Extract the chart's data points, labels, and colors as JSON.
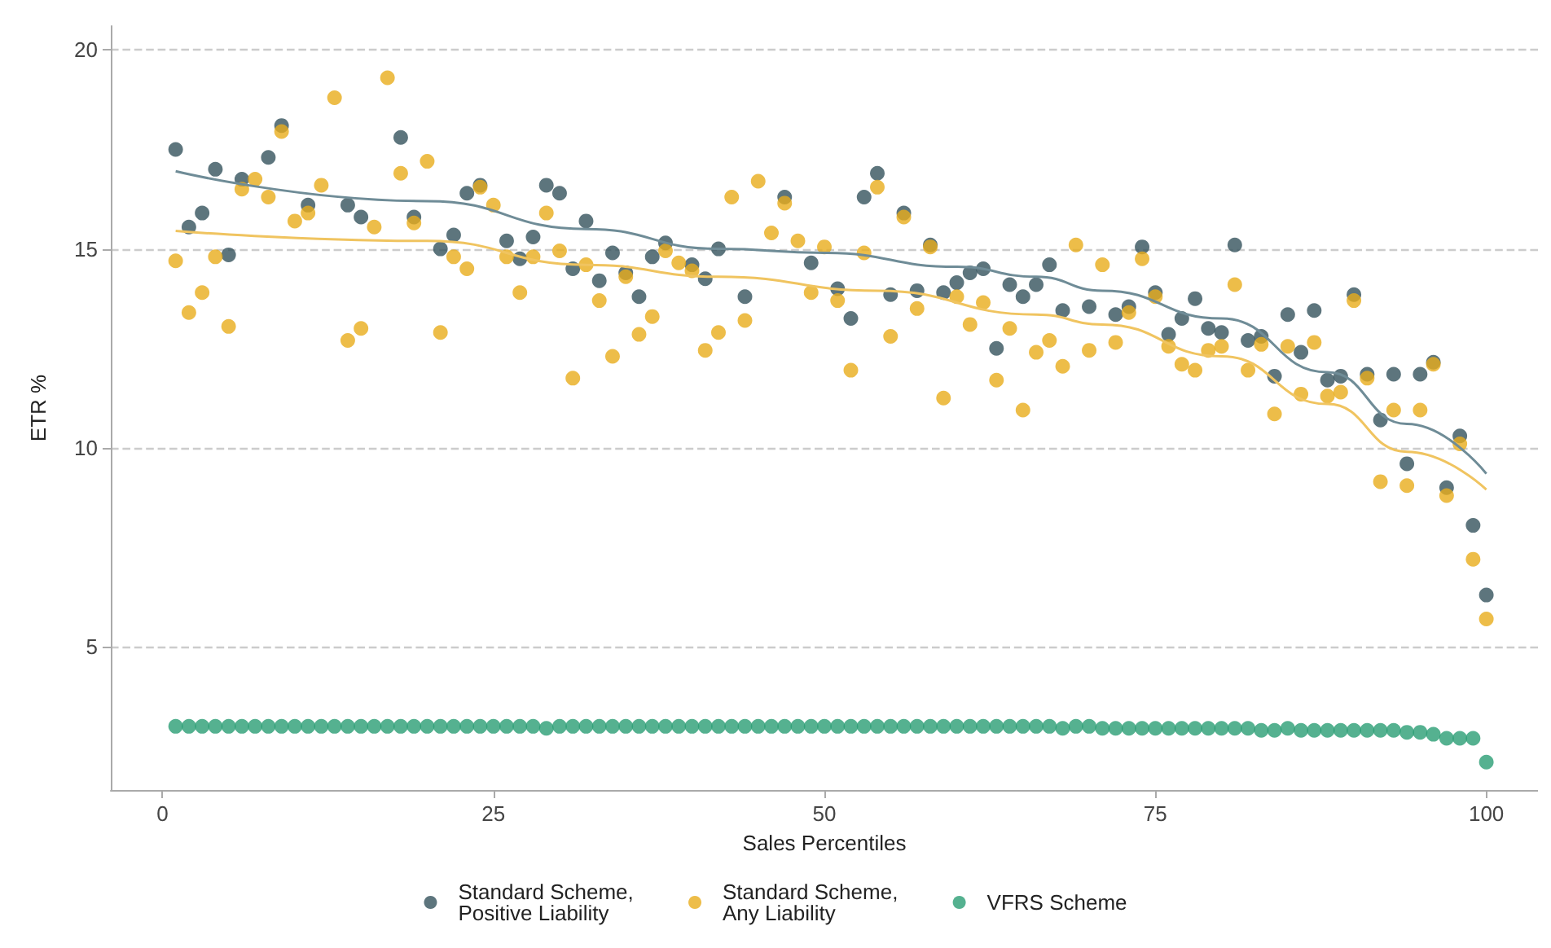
{
  "chart_data": {
    "type": "scatter",
    "xlabel": "Sales Percentiles",
    "ylabel": "ETR %",
    "x": [
      1,
      2,
      3,
      4,
      5,
      6,
      7,
      8,
      9,
      10,
      11,
      12,
      13,
      14,
      15,
      16,
      17,
      18,
      19,
      20,
      21,
      22,
      23,
      24,
      25,
      26,
      27,
      28,
      29,
      30,
      31,
      32,
      33,
      34,
      35,
      36,
      37,
      38,
      39,
      40,
      41,
      42,
      43,
      44,
      45,
      46,
      47,
      48,
      49,
      50,
      51,
      52,
      53,
      54,
      55,
      56,
      57,
      58,
      59,
      60,
      61,
      62,
      63,
      64,
      65,
      66,
      67,
      68,
      69,
      70,
      71,
      72,
      73,
      74,
      75,
      76,
      77,
      78,
      79,
      80,
      81,
      82,
      83,
      84,
      85,
      86,
      87,
      88,
      89,
      90,
      91,
      92,
      93,
      94,
      95,
      96,
      97,
      98,
      99,
      100
    ],
    "series": [
      {
        "name": "Standard Scheme, Positive Liability",
        "color": "#34525c",
        "values": [
          17.5,
          15.55,
          15.9,
          17.0,
          14.85,
          16.75,
          null,
          17.3,
          18.1,
          null,
          16.1,
          null,
          null,
          16.1,
          15.8,
          null,
          null,
          17.8,
          15.8,
          null,
          15.0,
          15.35,
          16.4,
          16.6,
          null,
          15.2,
          14.75,
          15.3,
          16.6,
          16.4,
          14.5,
          15.7,
          14.2,
          14.9,
          14.4,
          13.8,
          14.8,
          15.15,
          null,
          14.6,
          14.25,
          15.0,
          null,
          13.8,
          null,
          null,
          16.3,
          null,
          14.65,
          null,
          14.0,
          13.25,
          16.3,
          16.9,
          13.85,
          15.9,
          13.95,
          15.1,
          13.9,
          14.15,
          14.4,
          14.5,
          12.5,
          14.1,
          13.8,
          14.1,
          14.6,
          13.45,
          null,
          13.55,
          null,
          13.35,
          13.55,
          15.05,
          13.9,
          12.85,
          13.25,
          13.75,
          13.0,
          12.9,
          15.1,
          12.7,
          12.8,
          11.8,
          13.35,
          12.4,
          13.45,
          11.7,
          11.8,
          13.85,
          11.85,
          10.7,
          11.85,
          9.6,
          11.85,
          12.15,
          9.0,
          10.3,
          8.05,
          6.3
        ]
      },
      {
        "name": "Standard Scheme, Any Liability",
        "color": "#e8ac1c",
        "values": [
          14.7,
          13.4,
          13.9,
          14.8,
          13.05,
          16.5,
          16.75,
          16.3,
          17.95,
          15.7,
          15.9,
          16.6,
          18.8,
          12.7,
          13.0,
          15.55,
          19.3,
          16.9,
          15.65,
          17.2,
          12.9,
          14.8,
          14.5,
          16.55,
          16.1,
          14.8,
          13.9,
          14.8,
          15.9,
          14.95,
          11.75,
          14.6,
          13.7,
          12.3,
          14.3,
          12.85,
          13.3,
          14.95,
          14.65,
          14.45,
          12.45,
          12.9,
          16.3,
          13.2,
          16.7,
          15.4,
          16.15,
          15.2,
          13.9,
          15.05,
          13.7,
          11.95,
          14.9,
          16.55,
          12.8,
          15.8,
          13.5,
          15.05,
          11.25,
          13.8,
          13.1,
          13.65,
          11.7,
          13.0,
          10.95,
          12.4,
          12.7,
          12.05,
          15.1,
          12.45,
          14.6,
          12.65,
          13.4,
          14.75,
          13.8,
          12.55,
          12.1,
          11.95,
          12.45,
          12.55,
          14.1,
          11.95,
          12.6,
          10.85,
          12.55,
          11.35,
          12.65,
          11.3,
          11.4,
          13.7,
          11.75,
          9.15,
          10.95,
          9.05,
          10.95,
          12.1,
          8.8,
          10.1,
          7.2,
          5.7
        ]
      },
      {
        "name": "VFRS Scheme",
        "color": "#2a9d74",
        "values": [
          3.0,
          3.0,
          3.0,
          3.0,
          3.0,
          3.0,
          3.0,
          3.0,
          3.0,
          3.0,
          3.0,
          3.0,
          3.0,
          3.0,
          3.0,
          3.0,
          3.0,
          3.0,
          3.0,
          3.0,
          3.0,
          3.0,
          3.0,
          3.0,
          3.0,
          3.0,
          3.0,
          3.0,
          2.95,
          3.0,
          3.0,
          3.0,
          3.0,
          3.0,
          3.0,
          3.0,
          3.0,
          3.0,
          3.0,
          3.0,
          3.0,
          3.0,
          3.0,
          3.0,
          3.0,
          3.0,
          3.0,
          3.0,
          3.0,
          3.0,
          3.0,
          3.0,
          3.0,
          3.0,
          3.0,
          3.0,
          3.0,
          3.0,
          3.0,
          3.0,
          3.0,
          3.0,
          3.0,
          3.0,
          3.0,
          3.0,
          3.0,
          2.95,
          3.0,
          3.0,
          2.95,
          2.95,
          2.95,
          2.95,
          2.95,
          2.95,
          2.95,
          2.95,
          2.95,
          2.95,
          2.95,
          2.95,
          2.9,
          2.9,
          2.95,
          2.9,
          2.9,
          2.9,
          2.9,
          2.9,
          2.9,
          2.9,
          2.9,
          2.85,
          2.85,
          2.8,
          2.7,
          2.7,
          2.7,
          2.1
        ]
      },
      {
        "type": "line",
        "marker": "none",
        "color": "#6f8c97",
        "x": [
          1,
          20,
          32,
          42,
          50,
          60,
          66,
          71,
          80,
          88,
          94,
          100
        ],
        "values": [
          16.95,
          16.2,
          15.5,
          15.0,
          14.9,
          14.55,
          14.3,
          13.95,
          13.25,
          11.9,
          10.6,
          9.35
        ]
      },
      {
        "type": "line",
        "marker": "none",
        "color": "#f0c460",
        "x": [
          1,
          20,
          32,
          42,
          54,
          66,
          71,
          80,
          88,
          94,
          100
        ],
        "values": [
          15.45,
          15.2,
          14.6,
          14.3,
          13.95,
          13.35,
          13.1,
          12.3,
          11.1,
          9.9,
          8.95
        ]
      }
    ],
    "marker": "circle",
    "xlim": [
      -3.9,
      103.9
    ],
    "ylim": [
      1.4,
      20.6
    ],
    "xticks": [
      0,
      25,
      50,
      75,
      100
    ],
    "yticks": [
      5,
      10,
      15,
      20
    ],
    "grid": "y",
    "legend": "bottom"
  }
}
